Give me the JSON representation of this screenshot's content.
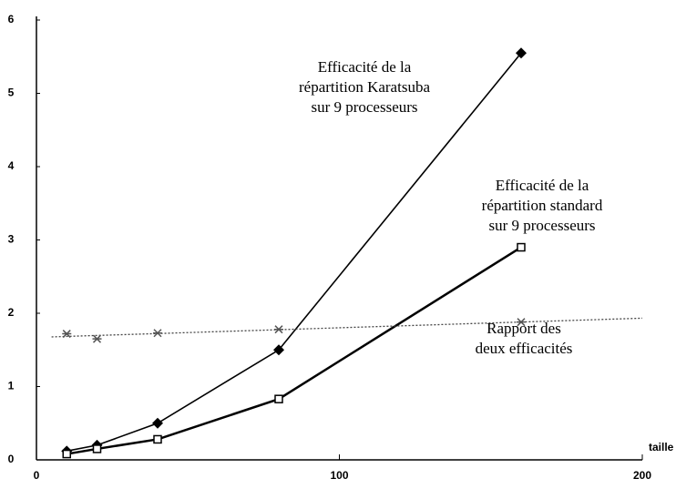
{
  "chart_data": {
    "type": "line",
    "x": [
      10,
      20,
      40,
      80,
      160
    ],
    "series": [
      {
        "name": "Efficacité de la répartition Karatsuba sur 9 processeurs",
        "color": "#000",
        "marker": "diamond",
        "values": [
          0.12,
          0.2,
          0.5,
          1.5,
          5.55
        ]
      },
      {
        "name": "Efficacité de la répartition standard sur 9 processeurs",
        "color": "#000",
        "marker": "square",
        "values": [
          0.08,
          0.15,
          0.28,
          0.83,
          2.9
        ]
      },
      {
        "name": "Rapport des deux efficacités",
        "color": "#000",
        "marker": "cross",
        "values": [
          1.72,
          1.65,
          1.73,
          1.78,
          1.88
        ]
      }
    ],
    "annotations": [
      [
        "Efficacité de la",
        "répartition Karatsuba",
        "sur 9 processeurs"
      ],
      [
        "Efficacité de la",
        "répartition standard",
        "sur 9 processeurs"
      ],
      [
        "Rapport des",
        "deux efficacités"
      ]
    ],
    "xlabel": "taille",
    "xlim": [
      0,
      200
    ],
    "xticks": [
      0,
      100,
      200
    ],
    "ylim": [
      0,
      6
    ],
    "yticks": [
      0,
      1,
      2,
      3,
      4,
      5,
      6
    ]
  }
}
